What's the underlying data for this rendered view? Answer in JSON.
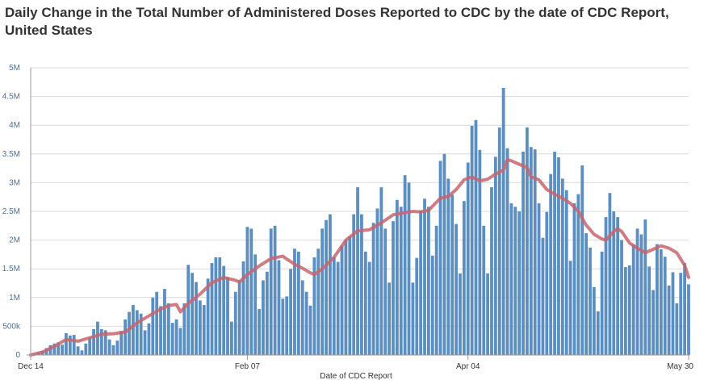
{
  "chart_data": {
    "type": "bar",
    "title": "Daily Change in the Total Number of Administered Doses Reported to CDC by the date of CDC Report, United States",
    "xlabel": "Date of CDC Report",
    "ylabel": "",
    "ylim": [
      0,
      5000000
    ],
    "yticks": [
      {
        "value": 0,
        "label": "0"
      },
      {
        "value": 500000,
        "label": "500k"
      },
      {
        "value": 1000000,
        "label": "1M"
      },
      {
        "value": 1500000,
        "label": "1.5M"
      },
      {
        "value": 2000000,
        "label": "2M"
      },
      {
        "value": 2500000,
        "label": "2.5M"
      },
      {
        "value": 3000000,
        "label": "3M"
      },
      {
        "value": 3500000,
        "label": "3.5M"
      },
      {
        "value": 4000000,
        "label": "4M"
      },
      {
        "value": 4500000,
        "label": "4.5M"
      },
      {
        "value": 5000000,
        "label": "5M"
      }
    ],
    "xticks": [
      {
        "index": 0,
        "label": "Dec 14"
      },
      {
        "index": 55,
        "label": "Feb 07"
      },
      {
        "index": 111,
        "label": "Apr 04"
      },
      {
        "index": 167,
        "label": "May 30"
      }
    ],
    "grid": true,
    "colors": {
      "bars": "#5b8fc2",
      "average": "#c8656d",
      "grid": "#d9d9d9",
      "axis": "#999999"
    },
    "series": [
      {
        "type": "bar",
        "values": [
          0,
          20000,
          40000,
          70000,
          120000,
          170000,
          200000,
          220000,
          180000,
          380000,
          340000,
          350000,
          150000,
          80000,
          200000,
          300000,
          450000,
          580000,
          450000,
          430000,
          270000,
          170000,
          250000,
          420000,
          620000,
          750000,
          870000,
          780000,
          720000,
          430000,
          550000,
          1000000,
          1100000,
          850000,
          1150000,
          900000,
          560000,
          620000,
          470000,
          900000,
          1570000,
          1430000,
          1270000,
          950000,
          870000,
          1330000,
          1600000,
          1700000,
          1700000,
          1550000,
          1350000,
          580000,
          1100000,
          1300000,
          1630000,
          2230000,
          2200000,
          1750000,
          800000,
          1300000,
          1450000,
          2200000,
          2250000,
          1650000,
          980000,
          1020000,
          1500000,
          1850000,
          1800000,
          1300000,
          1100000,
          860000,
          1700000,
          1850000,
          2200000,
          2350000,
          2450000,
          1700000,
          1620000,
          1900000,
          2000000,
          2060000,
          2450000,
          2920000,
          2450000,
          1800000,
          1620000,
          2300000,
          2550000,
          2920000,
          2200000,
          1260000,
          2330000,
          2700000,
          2580000,
          3130000,
          3000000,
          1260000,
          1690000,
          2520000,
          2720000,
          2580000,
          1730000,
          2250000,
          3380000,
          3500000,
          3070000,
          2790000,
          2280000,
          1420000,
          2680000,
          3350000,
          3990000,
          4090000,
          3570000,
          2250000,
          1420000,
          2920000,
          3450000,
          3960000,
          4650000,
          3600000,
          2640000,
          2580000,
          2500000,
          3540000,
          3960000,
          3620000,
          3580000,
          2640000,
          2040000,
          2490000,
          3150000,
          3540000,
          3440000,
          3070000,
          2870000,
          1640000,
          2640000,
          2800000,
          3300000,
          2120000,
          1870000,
          1180000,
          760000,
          1800000,
          2400000,
          2820000,
          2500000,
          2400000,
          2000000,
          1530000,
          1560000,
          1920000,
          2200000,
          2100000,
          2360000,
          1540000,
          1130000,
          1930000,
          1840000,
          1710000,
          1210000,
          1440000,
          900000,
          1430000,
          1600000,
          1230000
        ]
      },
      {
        "type": "line",
        "points": [
          [
            0,
            0
          ],
          [
            3,
            50000
          ],
          [
            6,
            150000
          ],
          [
            9,
            270000
          ],
          [
            12,
            240000
          ],
          [
            15,
            300000
          ],
          [
            18,
            360000
          ],
          [
            21,
            370000
          ],
          [
            24,
            400000
          ],
          [
            27,
            560000
          ],
          [
            30,
            680000
          ],
          [
            33,
            800000
          ],
          [
            35,
            860000
          ],
          [
            37,
            880000
          ],
          [
            38,
            750000
          ],
          [
            40,
            900000
          ],
          [
            43,
            1060000
          ],
          [
            46,
            1260000
          ],
          [
            49,
            1350000
          ],
          [
            52,
            1300000
          ],
          [
            53,
            1270000
          ],
          [
            55,
            1400000
          ],
          [
            58,
            1550000
          ],
          [
            61,
            1680000
          ],
          [
            64,
            1720000
          ],
          [
            65,
            1670000
          ],
          [
            67,
            1580000
          ],
          [
            69,
            1510000
          ],
          [
            71,
            1430000
          ],
          [
            72,
            1400000
          ],
          [
            74,
            1500000
          ],
          [
            77,
            1700000
          ],
          [
            80,
            2000000
          ],
          [
            83,
            2160000
          ],
          [
            86,
            2180000
          ],
          [
            89,
            2300000
          ],
          [
            92,
            2440000
          ],
          [
            95,
            2480000
          ],
          [
            97,
            2500000
          ],
          [
            99,
            2490000
          ],
          [
            101,
            2520000
          ],
          [
            104,
            2730000
          ],
          [
            106,
            2760000
          ],
          [
            108,
            2880000
          ],
          [
            110,
            3050000
          ],
          [
            112,
            3100000
          ],
          [
            114,
            3030000
          ],
          [
            116,
            3060000
          ],
          [
            118,
            3150000
          ],
          [
            120,
            3220000
          ],
          [
            121,
            3400000
          ],
          [
            122,
            3380000
          ],
          [
            124,
            3320000
          ],
          [
            126,
            3260000
          ],
          [
            127,
            3100000
          ],
          [
            129,
            3050000
          ],
          [
            131,
            2880000
          ],
          [
            133,
            2800000
          ],
          [
            135,
            2730000
          ],
          [
            137,
            2640000
          ],
          [
            139,
            2500000
          ],
          [
            141,
            2260000
          ],
          [
            143,
            2100000
          ],
          [
            145,
            2020000
          ],
          [
            146,
            2000000
          ],
          [
            148,
            2150000
          ],
          [
            149,
            2200000
          ],
          [
            150,
            2150000
          ],
          [
            152,
            1950000
          ],
          [
            154,
            1860000
          ],
          [
            156,
            1780000
          ],
          [
            158,
            1840000
          ],
          [
            160,
            1900000
          ],
          [
            162,
            1860000
          ],
          [
            164,
            1780000
          ],
          [
            166,
            1560000
          ],
          [
            167,
            1350000
          ]
        ]
      }
    ]
  }
}
